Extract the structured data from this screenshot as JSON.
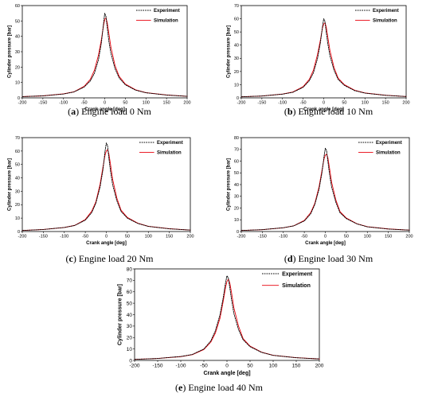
{
  "chart_data": [
    {
      "type": "line",
      "caption_letter": "a",
      "caption_text": "Engine load 0 Nm",
      "xlabel": "Crank angle [deg]",
      "ylabel": "Cylinder pressure [bar]",
      "xlim": [
        -200,
        200
      ],
      "ylim": [
        0,
        60
      ],
      "xticks": [
        -200,
        -150,
        -100,
        -50,
        0,
        50,
        100,
        150,
        200
      ],
      "yticks": [
        0,
        10,
        20,
        30,
        40,
        50,
        60
      ],
      "grid": false,
      "legend_position": "top-right",
      "series": [
        {
          "name": "Experiment",
          "color": "#000000",
          "dash": "dotted",
          "x": [
            -200,
            -150,
            -100,
            -75,
            -50,
            -35,
            -25,
            -15,
            -8,
            -3,
            0,
            3,
            6,
            10,
            15,
            25,
            35,
            50,
            75,
            100,
            150,
            200
          ],
          "y": [
            0.8,
            1.3,
            2.5,
            3.8,
            7,
            11,
            16,
            25,
            36,
            48,
            55,
            53,
            46,
            37,
            29,
            19,
            13,
            8.5,
            5,
            3.3,
            1.8,
            1.0
          ]
        },
        {
          "name": "Simulation",
          "color": "#e8000b",
          "dash": "solid",
          "x": [
            -200,
            -150,
            -100,
            -75,
            -50,
            -35,
            -25,
            -15,
            -8,
            -3,
            0,
            3,
            6,
            10,
            15,
            25,
            35,
            50,
            75,
            100,
            150,
            200
          ],
          "y": [
            0.8,
            1.3,
            2.6,
            3.9,
            7.5,
            12,
            18,
            28,
            38,
            47,
            51,
            52,
            49,
            42,
            33,
            21,
            14,
            9,
            5.2,
            3.4,
            1.9,
            1.0
          ]
        }
      ]
    },
    {
      "type": "line",
      "caption_letter": "b",
      "caption_text": "Engine load 10 Nm",
      "xlabel": "Crank angle [deg]",
      "ylabel": "Cylinder pressure [bar]",
      "xlim": [
        -200,
        200
      ],
      "ylim": [
        0,
        70
      ],
      "xticks": [
        -200,
        -150,
        -100,
        -50,
        0,
        50,
        100,
        150,
        200
      ],
      "yticks": [
        0,
        10,
        20,
        30,
        40,
        50,
        60,
        70
      ],
      "grid": false,
      "legend_position": "top-right",
      "series": [
        {
          "name": "Experiment",
          "color": "#000000",
          "dash": "dotted",
          "x": [
            -200,
            -150,
            -100,
            -75,
            -50,
            -35,
            -25,
            -15,
            -8,
            -3,
            0,
            3,
            6,
            10,
            15,
            25,
            35,
            50,
            75,
            100,
            150,
            200
          ],
          "y": [
            0.8,
            1.4,
            2.8,
            4.2,
            8,
            13,
            19,
            30,
            42,
            54,
            60,
            58,
            50,
            41,
            32,
            21,
            14,
            9.5,
            5.5,
            3.6,
            1.9,
            1.0
          ]
        },
        {
          "name": "Simulation",
          "color": "#e8000b",
          "dash": "solid",
          "x": [
            -200,
            -150,
            -100,
            -75,
            -50,
            -35,
            -25,
            -15,
            -8,
            -3,
            0,
            3,
            6,
            10,
            15,
            25,
            35,
            50,
            75,
            100,
            150,
            200
          ],
          "y": [
            0.8,
            1.4,
            2.9,
            4.4,
            8.5,
            14,
            21,
            33,
            44,
            53,
            56,
            57,
            54,
            46,
            36,
            23,
            15,
            10,
            5.8,
            3.7,
            2.0,
            1.0
          ]
        }
      ]
    },
    {
      "type": "line",
      "caption_letter": "c",
      "caption_text": "Engine load 20 Nm",
      "xlabel": "Crank angle [deg]",
      "ylabel": "Cylinder pressure [bar]",
      "xlim": [
        -200,
        200
      ],
      "ylim": [
        0,
        70
      ],
      "xticks": [
        -200,
        -150,
        -100,
        -50,
        0,
        50,
        100,
        150,
        200
      ],
      "yticks": [
        0,
        10,
        20,
        30,
        40,
        50,
        60,
        70
      ],
      "grid": false,
      "legend_position": "top-right",
      "series": [
        {
          "name": "Experiment",
          "color": "#000000",
          "dash": "dotted",
          "x": [
            -200,
            -150,
            -100,
            -75,
            -50,
            -35,
            -25,
            -15,
            -8,
            -3,
            0,
            3,
            6,
            10,
            15,
            25,
            35,
            50,
            75,
            100,
            150,
            200
          ],
          "y": [
            0.8,
            1.5,
            3.0,
            4.5,
            8.5,
            14,
            21,
            33,
            46,
            60,
            66,
            64,
            55,
            45,
            35,
            23,
            15,
            10,
            6,
            3.8,
            2.0,
            1.1
          ]
        },
        {
          "name": "Simulation",
          "color": "#e8000b",
          "dash": "solid",
          "x": [
            -200,
            -150,
            -100,
            -75,
            -50,
            -35,
            -25,
            -15,
            -8,
            -3,
            0,
            3,
            6,
            10,
            15,
            25,
            35,
            50,
            75,
            100,
            150,
            200
          ],
          "y": [
            0.8,
            1.5,
            3.0,
            4.6,
            9,
            15,
            22,
            35,
            48,
            57,
            60,
            61,
            58,
            50,
            39,
            25,
            16,
            10.5,
            6.2,
            3.9,
            2.1,
            1.1
          ]
        }
      ]
    },
    {
      "type": "line",
      "caption_letter": "d",
      "caption_text": "Engine load 30 Nm",
      "xlabel": "Crank angle [deg]",
      "ylabel": "Cylinder pressure [bar]",
      "xlim": [
        -200,
        200
      ],
      "ylim": [
        0,
        80
      ],
      "xticks": [
        -200,
        -150,
        -100,
        -50,
        0,
        50,
        100,
        150,
        200
      ],
      "yticks": [
        0,
        10,
        20,
        30,
        40,
        50,
        60,
        70,
        80
      ],
      "grid": false,
      "legend_position": "top-right",
      "series": [
        {
          "name": "Experiment",
          "color": "#000000",
          "dash": "dotted",
          "x": [
            -200,
            -150,
            -100,
            -75,
            -50,
            -35,
            -25,
            -15,
            -8,
            -3,
            0,
            3,
            6,
            10,
            15,
            25,
            35,
            50,
            75,
            100,
            150,
            200
          ],
          "y": [
            0.9,
            1.6,
            3.2,
            4.8,
            9,
            15,
            23,
            36,
            50,
            64,
            71,
            69,
            60,
            49,
            38,
            25,
            16,
            11,
            6.5,
            4.0,
            2.1,
            1.2
          ]
        },
        {
          "name": "Simulation",
          "color": "#e8000b",
          "dash": "solid",
          "x": [
            -200,
            -150,
            -100,
            -75,
            -50,
            -35,
            -25,
            -15,
            -8,
            -3,
            0,
            3,
            6,
            10,
            15,
            25,
            35,
            50,
            75,
            100,
            150,
            200
          ],
          "y": [
            0.9,
            1.6,
            3.2,
            4.9,
            9.5,
            16,
            24,
            38,
            52,
            62,
            65,
            66,
            63,
            54,
            42,
            27,
            17,
            11.5,
            6.7,
            4.1,
            2.2,
            1.2
          ]
        }
      ]
    },
    {
      "type": "line",
      "caption_letter": "e",
      "caption_text": "Engine load 40 Nm",
      "xlabel": "Crank angle [deg]",
      "ylabel": "Cylinder pressure [bar]",
      "xlim": [
        -200,
        200
      ],
      "ylim": [
        0,
        80
      ],
      "xticks": [
        -200,
        -150,
        -100,
        -50,
        0,
        50,
        100,
        150,
        200
      ],
      "yticks": [
        0,
        10,
        20,
        30,
        40,
        50,
        60,
        70,
        80
      ],
      "grid": false,
      "legend_position": "top-right",
      "series": [
        {
          "name": "Experiment",
          "color": "#000000",
          "dash": "dotted",
          "x": [
            -200,
            -150,
            -100,
            -75,
            -50,
            -35,
            -25,
            -15,
            -8,
            -3,
            0,
            3,
            6,
            10,
            15,
            25,
            35,
            50,
            75,
            100,
            150,
            200
          ],
          "y": [
            0.9,
            1.7,
            3.4,
            5.2,
            10,
            17,
            26,
            40,
            55,
            68,
            74,
            72,
            64,
            53,
            41,
            27,
            18,
            12,
            7,
            4.4,
            2.3,
            1.3
          ]
        },
        {
          "name": "Simulation",
          "color": "#e8000b",
          "dash": "solid",
          "x": [
            -200,
            -150,
            -100,
            -75,
            -50,
            -35,
            -25,
            -15,
            -8,
            -3,
            0,
            3,
            6,
            10,
            15,
            25,
            35,
            50,
            75,
            100,
            150,
            200
          ],
          "y": [
            0.9,
            1.7,
            3.3,
            5.0,
            9.5,
            16,
            24,
            37,
            52,
            64,
            69,
            71,
            68,
            59,
            46,
            30,
            19,
            12.5,
            7.2,
            4.5,
            2.4,
            1.3
          ]
        }
      ]
    }
  ]
}
